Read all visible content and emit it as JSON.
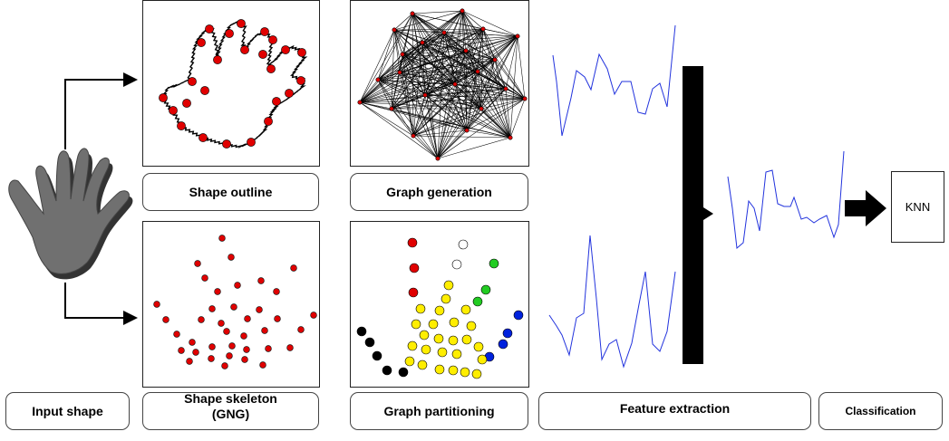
{
  "labels": {
    "input_shape": "Input shape",
    "shape_outline": "Shape outline",
    "shape_skeleton_line1": "Shape skeleton",
    "shape_skeleton_line2": "(GNG)",
    "graph_generation": "Graph generation",
    "graph_partitioning": "Graph partitioning",
    "feature_extraction": "Feature extraction",
    "classification": "Classification",
    "knn": "KNN"
  },
  "colors": {
    "node_red": "#e00000",
    "node_yellow": "#ffee00",
    "node_green": "#22cc22",
    "node_blue": "#0022dd",
    "node_black": "#000000",
    "node_white": "#ffffff",
    "signal_blue": "#2233dd",
    "hand_gray": "#6e6e6e"
  }
}
